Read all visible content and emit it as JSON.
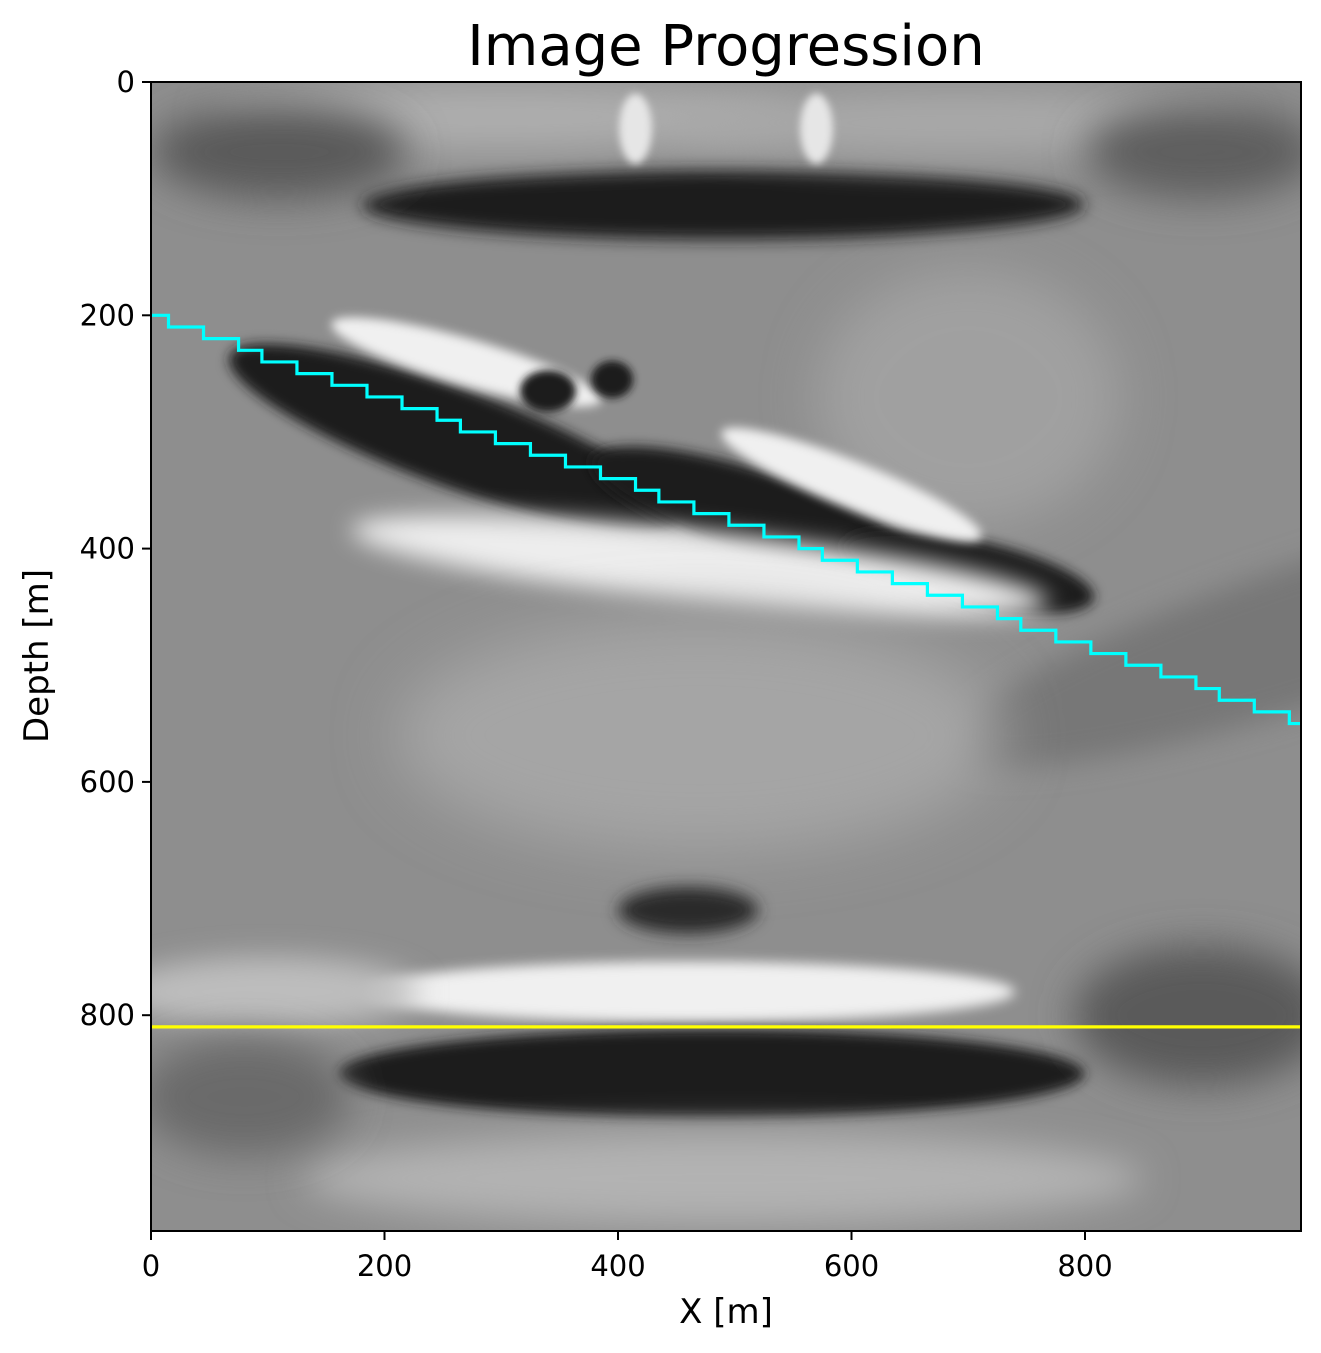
{
  "chart_data": {
    "type": "heatmap",
    "title": "Image Progression",
    "xlabel": "X [m]",
    "ylabel": "Depth [m]",
    "xlim": [
      0,
      985
    ],
    "ylim": [
      985,
      0
    ],
    "x_ticks": [
      0,
      200,
      400,
      600,
      800
    ],
    "y_ticks": [
      0,
      200,
      400,
      600,
      800
    ],
    "colormap": "gray",
    "grid": false,
    "background_gray": "#8e8e8e",
    "series": [
      {
        "color": "#00ffff",
        "step": true,
        "x": [
          0,
          10,
          20,
          30,
          40,
          50,
          60,
          70,
          80,
          90,
          100,
          110,
          120,
          130,
          140,
          150,
          160,
          170,
          180,
          190,
          200,
          210,
          220,
          230,
          240,
          250,
          260,
          270,
          280,
          290,
          300,
          310,
          320,
          330,
          340,
          350,
          360,
          370,
          380,
          390,
          400,
          410,
          420,
          430,
          440,
          450,
          460,
          470,
          480,
          490,
          500,
          510,
          520,
          530,
          540,
          550,
          560,
          570,
          580,
          590,
          600,
          610,
          620,
          630,
          640,
          650,
          660,
          670,
          680,
          690,
          700,
          710,
          720,
          730,
          740,
          750,
          760,
          770,
          780,
          790,
          800,
          810,
          820,
          830,
          840,
          850,
          860,
          870,
          880,
          890,
          900,
          910,
          920,
          930,
          940,
          950,
          960,
          970,
          980,
          985
        ],
        "y": [
          200,
          200,
          210,
          210,
          210,
          220,
          220,
          220,
          230,
          230,
          240,
          240,
          240,
          250,
          250,
          250,
          260,
          260,
          260,
          270,
          270,
          270,
          280,
          280,
          280,
          290,
          290,
          300,
          300,
          300,
          310,
          310,
          310,
          320,
          320,
          320,
          330,
          330,
          330,
          340,
          340,
          340,
          350,
          350,
          360,
          360,
          360,
          370,
          370,
          370,
          380,
          380,
          380,
          390,
          390,
          390,
          400,
          400,
          410,
          410,
          410,
          420,
          420,
          420,
          430,
          430,
          430,
          440,
          440,
          440,
          450,
          450,
          450,
          460,
          460,
          470,
          470,
          470,
          480,
          480,
          480,
          490,
          490,
          490,
          500,
          500,
          500,
          510,
          510,
          510,
          520,
          520,
          530,
          530,
          530,
          540,
          540,
          540,
          550,
          550
        ]
      },
      {
        "color": "#ffff00",
        "step": false,
        "x": [
          0,
          985
        ],
        "y": [
          810,
          810
        ]
      }
    ],
    "image_features": [
      {
        "kind": "ellipse",
        "cx": 490,
        "cy": 105,
        "rx": 310,
        "ry": 30,
        "rot": 0,
        "tone": "#1c1c1c",
        "blur": 8
      },
      {
        "kind": "ellipse",
        "cx": 300,
        "cy": 30,
        "rx": 250,
        "ry": 30,
        "rot": 0,
        "tone": "#adadad",
        "blur": 18
      },
      {
        "kind": "ellipse",
        "cx": 690,
        "cy": 35,
        "rx": 250,
        "ry": 30,
        "rot": 0,
        "tone": "#a8a8a8",
        "blur": 18
      },
      {
        "kind": "ellipse",
        "cx": 415,
        "cy": 40,
        "rx": 14,
        "ry": 30,
        "rot": 0,
        "tone": "#e6e6e6",
        "blur": 4
      },
      {
        "kind": "ellipse",
        "cx": 570,
        "cy": 40,
        "rx": 14,
        "ry": 30,
        "rot": 0,
        "tone": "#e6e6e6",
        "blur": 4
      },
      {
        "kind": "ellipse",
        "cx": 110,
        "cy": 60,
        "rx": 110,
        "ry": 40,
        "rot": 0,
        "tone": "#5a5a5a",
        "blur": 20
      },
      {
        "kind": "ellipse",
        "cx": 900,
        "cy": 60,
        "rx": 100,
        "ry": 40,
        "rot": 0,
        "tone": "#5e5e5e",
        "blur": 20
      },
      {
        "kind": "ellipse",
        "cx": 700,
        "cy": 270,
        "rx": 130,
        "ry": 110,
        "rot": 0,
        "tone": "#a0a0a0",
        "blur": 25
      },
      {
        "kind": "ellipse",
        "cx": 260,
        "cy": 305,
        "rx": 205,
        "ry": 42,
        "rot": 20,
        "tone": "#1c1c1c",
        "blur": 6
      },
      {
        "kind": "ellipse",
        "cx": 520,
        "cy": 370,
        "rx": 150,
        "ry": 36,
        "rot": 18,
        "tone": "#1c1c1c",
        "blur": 6
      },
      {
        "kind": "ellipse",
        "cx": 700,
        "cy": 420,
        "rx": 110,
        "ry": 28,
        "rot": 12,
        "tone": "#1c1c1c",
        "blur": 6
      },
      {
        "kind": "ellipse",
        "cx": 270,
        "cy": 240,
        "rx": 120,
        "ry": 20,
        "rot": 16,
        "tone": "#f0f0f0",
        "blur": 5
      },
      {
        "kind": "ellipse",
        "cx": 600,
        "cy": 345,
        "rx": 120,
        "ry": 20,
        "rot": 22,
        "tone": "#f0f0f0",
        "blur": 5
      },
      {
        "kind": "ellipse",
        "cx": 340,
        "cy": 265,
        "rx": 24,
        "ry": 18,
        "rot": 0,
        "tone": "#1c1c1c",
        "blur": 4
      },
      {
        "kind": "ellipse",
        "cx": 395,
        "cy": 255,
        "rx": 18,
        "ry": 16,
        "rot": 0,
        "tone": "#1c1c1c",
        "blur": 4
      },
      {
        "kind": "ellipse",
        "cx": 1000,
        "cy": 470,
        "rx": 330,
        "ry": 60,
        "rot": -18,
        "tone": "#777777",
        "blur": 14
      },
      {
        "kind": "ellipse",
        "cx": 470,
        "cy": 415,
        "rx": 300,
        "ry": 30,
        "rot": 6,
        "tone": "#ededed",
        "blur": 12
      },
      {
        "kind": "ellipse",
        "cx": 470,
        "cy": 560,
        "rx": 260,
        "ry": 100,
        "rot": 0,
        "tone": "#a5a5a5",
        "blur": 30
      },
      {
        "kind": "ellipse",
        "cx": 460,
        "cy": 780,
        "rx": 280,
        "ry": 26,
        "rot": 0,
        "tone": "#f0f0f0",
        "blur": 6
      },
      {
        "kind": "ellipse",
        "cx": 480,
        "cy": 850,
        "rx": 320,
        "ry": 38,
        "rot": 0,
        "tone": "#1c1c1c",
        "blur": 6
      },
      {
        "kind": "ellipse",
        "cx": 460,
        "cy": 710,
        "rx": 60,
        "ry": 20,
        "rot": 0,
        "tone": "#2a2a2a",
        "blur": 8
      },
      {
        "kind": "ellipse",
        "cx": 490,
        "cy": 940,
        "rx": 360,
        "ry": 40,
        "rot": 0,
        "tone": "#b2b2b2",
        "blur": 18
      },
      {
        "kind": "ellipse",
        "cx": 100,
        "cy": 780,
        "rx": 130,
        "ry": 30,
        "rot": 0,
        "tone": "#bdbdbd",
        "blur": 14
      },
      {
        "kind": "ellipse",
        "cx": 900,
        "cy": 800,
        "rx": 110,
        "ry": 60,
        "rot": 0,
        "tone": "#5a5a5a",
        "blur": 20
      },
      {
        "kind": "ellipse",
        "cx": 80,
        "cy": 870,
        "rx": 90,
        "ry": 50,
        "rot": 0,
        "tone": "#6a6a6a",
        "blur": 20
      }
    ]
  }
}
